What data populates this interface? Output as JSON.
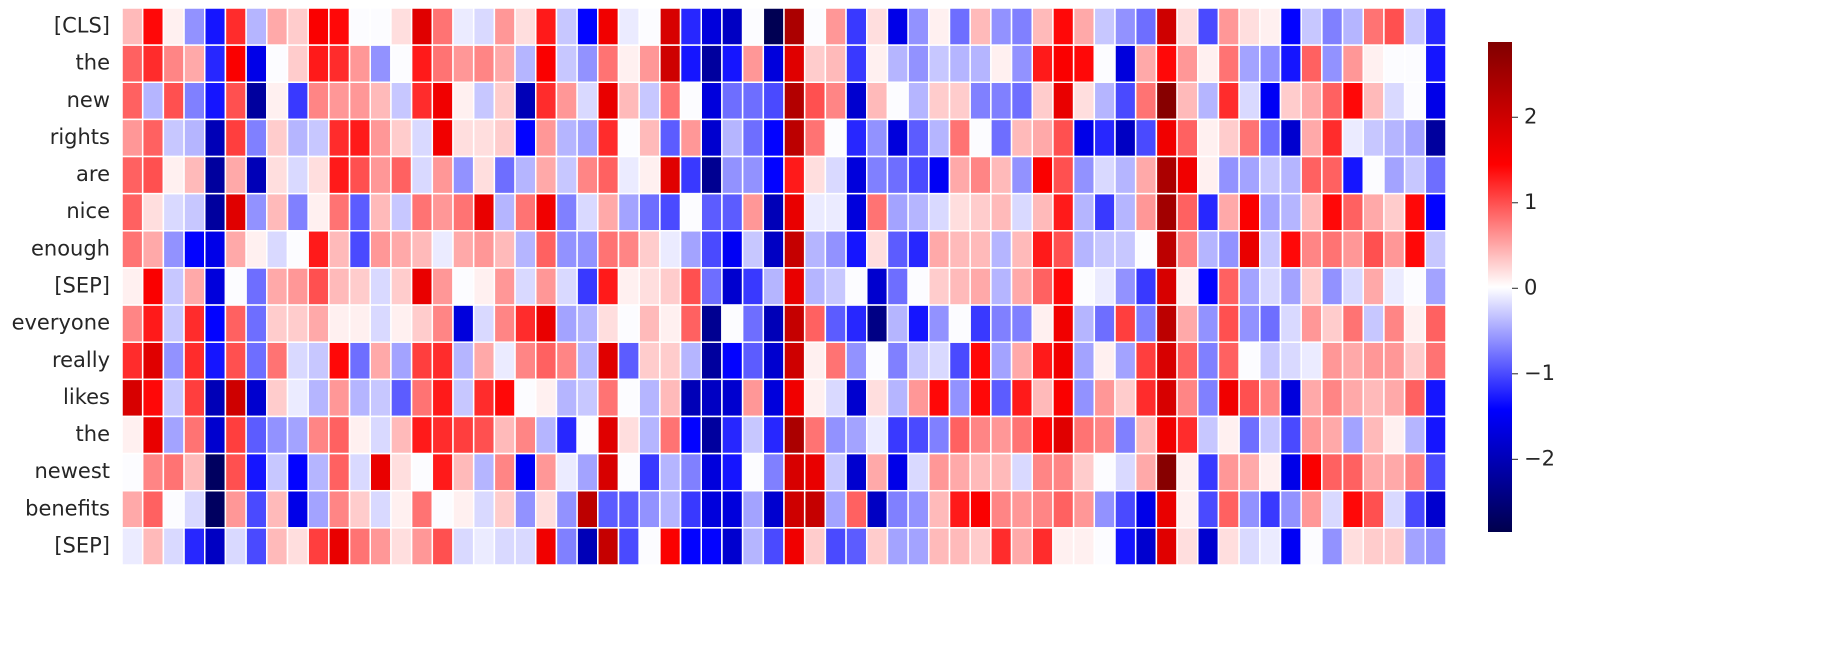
{
  "chart_data": {
    "type": "heatmap",
    "categories": [
      "[CLS]",
      "the",
      "new",
      "rights",
      "are",
      "nice",
      "enough",
      "[SEP]",
      "everyone",
      "really",
      "likes",
      "the",
      "newest",
      "benefits",
      "[SEP]"
    ],
    "colormap": "seismic",
    "vlim": [
      -2.85,
      2.88
    ],
    "colorbar_ticks": [
      {
        "value": -2,
        "label": "−2"
      },
      {
        "value": -1,
        "label": "−1"
      },
      0,
      1,
      2
    ],
    "z": [
      [
        0.4,
        1.4,
        0.1,
        -0.6,
        -1.3,
        1.2,
        -0.4,
        0.5,
        0.3,
        1.5,
        1.4,
        0.0,
        0.0,
        0.2,
        1.8,
        0.8,
        -0.1,
        -0.2,
        0.6,
        0.2,
        1.3,
        -0.3,
        -1.4,
        1.6,
        -0.1,
        0.0,
        1.9,
        -1.2,
        -1.7,
        -1.9,
        0.0,
        -2.8,
        2.4,
        0.0,
        0.6,
        -1.1,
        0.2,
        -1.6,
        -0.6,
        0.1,
        -0.8,
        0.4,
        -0.6,
        -0.7,
        0.4,
        1.4,
        0.5,
        -0.3,
        -0.6,
        -0.8,
        2.0,
        0.2,
        -1.0,
        0.6,
        0.2,
        0.1,
        -1.4,
        -0.3,
        -0.7,
        -0.4,
        0.8,
        1.0,
        -0.3,
        -1.2
      ],
      [
        0.9,
        1.2,
        0.7,
        0.5,
        -1.2,
        1.5,
        -1.6,
        0.0,
        0.3,
        1.3,
        1.2,
        0.6,
        -0.6,
        0.0,
        1.3,
        0.8,
        0.6,
        0.7,
        0.5,
        -0.4,
        1.5,
        -0.3,
        -0.6,
        0.8,
        0.1,
        0.6,
        2.0,
        -1.3,
        -2.2,
        -1.3,
        0.6,
        -1.7,
        1.8,
        0.3,
        0.4,
        -1.1,
        0.1,
        -0.4,
        -0.6,
        -0.3,
        -0.4,
        -0.4,
        0.1,
        -0.6,
        1.3,
        1.5,
        1.4,
        0.0,
        -1.7,
        0.5,
        1.4,
        0.6,
        0.1,
        0.8,
        -0.5,
        -0.6,
        -1.3,
        0.9,
        -0.6,
        0.6,
        0.1,
        0.0,
        0.0,
        -1.3
      ],
      [
        0.9,
        -0.4,
        1.0,
        -0.7,
        -1.3,
        1.0,
        -2.2,
        0.1,
        -1.1,
        0.7,
        0.6,
        0.6,
        0.4,
        -0.3,
        1.2,
        1.6,
        0.1,
        -0.3,
        0.3,
        -2.0,
        1.2,
        0.6,
        -0.2,
        1.7,
        0.4,
        -0.3,
        0.8,
        0.0,
        -1.7,
        -0.8,
        -0.8,
        -1.0,
        2.3,
        1.0,
        0.7,
        -1.8,
        0.4,
        0.0,
        -0.4,
        0.3,
        0.3,
        -0.7,
        -0.7,
        -0.8,
        0.3,
        1.7,
        0.2,
        -0.4,
        -1.0,
        0.8,
        2.8,
        0.4,
        -0.4,
        1.2,
        -0.2,
        -1.5,
        0.3,
        0.5,
        0.9,
        1.4,
        0.4,
        -0.2,
        0.0,
        -1.6
      ],
      [
        0.6,
        0.9,
        -0.3,
        -0.4,
        -2.0,
        1.1,
        -0.7,
        0.3,
        -0.4,
        -0.3,
        1.2,
        1.3,
        0.6,
        0.3,
        -0.2,
        1.6,
        0.2,
        0.2,
        0.3,
        -1.4,
        0.6,
        -0.4,
        -0.5,
        1.2,
        0.0,
        0.4,
        -0.9,
        0.6,
        -1.8,
        -0.4,
        -0.8,
        -1.4,
        2.2,
        0.8,
        0.0,
        -1.2,
        -0.6,
        -1.7,
        -0.9,
        -0.4,
        0.8,
        0.0,
        -0.8,
        0.4,
        0.5,
        1.0,
        -1.6,
        -1.2,
        -1.9,
        -1.0,
        1.6,
        0.9,
        0.1,
        0.3,
        0.8,
        -0.8,
        -1.8,
        0.5,
        1.2,
        -0.1,
        -0.3,
        -0.4,
        -0.5,
        -2.2
      ],
      [
        0.9,
        1.0,
        0.1,
        0.4,
        -2.2,
        0.5,
        -2.0,
        0.2,
        -0.2,
        0.2,
        1.3,
        1.0,
        0.6,
        0.9,
        -0.2,
        0.6,
        -0.6,
        0.2,
        -0.8,
        -0.4,
        0.5,
        -0.3,
        0.7,
        0.9,
        -0.1,
        0.1,
        1.8,
        -1.1,
        -2.3,
        -0.6,
        -0.6,
        -1.4,
        1.3,
        0.2,
        -0.2,
        -1.7,
        -0.7,
        -0.8,
        -1.0,
        -1.5,
        0.5,
        0.7,
        0.4,
        -0.6,
        1.5,
        1.0,
        -0.6,
        -0.2,
        -0.4,
        0.5,
        2.4,
        1.6,
        0.1,
        -0.6,
        -0.5,
        -0.3,
        -0.4,
        0.9,
        0.9,
        -1.3,
        0.0,
        -0.5,
        -0.3,
        -0.8
      ],
      [
        0.9,
        0.2,
        -0.2,
        -0.3,
        -2.2,
        1.8,
        -0.6,
        0.4,
        -0.7,
        0.1,
        0.8,
        -0.9,
        0.4,
        -0.3,
        0.8,
        0.6,
        0.8,
        1.7,
        -0.4,
        0.8,
        1.6,
        -0.7,
        -0.2,
        0.5,
        -0.5,
        -0.8,
        -1.0,
        0.0,
        -0.9,
        -0.9,
        0.6,
        -2.0,
        1.7,
        -0.1,
        -0.1,
        -1.7,
        0.8,
        -0.5,
        -0.4,
        -0.2,
        0.2,
        0.3,
        0.4,
        -0.2,
        0.4,
        1.3,
        -0.4,
        -1.1,
        -0.4,
        0.6,
        2.5,
        0.9,
        -1.2,
        0.5,
        1.5,
        -0.5,
        -0.4,
        0.4,
        1.4,
        0.9,
        0.5,
        0.3,
        1.4,
        -1.4
      ],
      [
        0.8,
        0.5,
        -0.6,
        -1.4,
        -1.6,
        0.5,
        0.1,
        -0.2,
        0.0,
        1.3,
        0.4,
        -1.0,
        0.6,
        0.5,
        0.4,
        -0.1,
        0.5,
        0.6,
        0.4,
        -0.4,
        0.9,
        -0.6,
        -0.6,
        0.8,
        0.7,
        0.3,
        -0.1,
        -0.5,
        -1.0,
        -1.5,
        -0.3,
        -1.9,
        2.1,
        -0.4,
        -0.6,
        -1.3,
        0.2,
        -0.9,
        -1.2,
        0.5,
        0.4,
        0.4,
        -0.4,
        0.4,
        1.3,
        1.0,
        -0.4,
        -0.3,
        -0.3,
        0.0,
        2.2,
        0.7,
        -0.4,
        -0.6,
        1.7,
        -0.3,
        1.4,
        0.7,
        0.8,
        0.6,
        1.0,
        0.6,
        1.4,
        -0.3
      ],
      [
        0.1,
        1.5,
        -0.3,
        0.5,
        -1.7,
        0.0,
        -0.8,
        0.5,
        0.6,
        1.0,
        0.4,
        0.3,
        -0.2,
        0.3,
        1.7,
        0.6,
        0.0,
        0.1,
        0.6,
        -0.2,
        0.6,
        -0.2,
        -1.1,
        1.3,
        0.1,
        0.2,
        0.3,
        1.0,
        -0.8,
        -1.8,
        -1.1,
        -0.4,
        1.7,
        -0.4,
        -0.3,
        0.0,
        -1.8,
        -0.8,
        0.0,
        0.3,
        0.4,
        0.5,
        -0.4,
        0.5,
        0.9,
        1.4,
        0.0,
        -0.1,
        -0.6,
        -1.1,
        1.9,
        0.1,
        -1.4,
        0.9,
        -0.5,
        -0.2,
        -0.5,
        0.3,
        -0.6,
        -0.2,
        0.5,
        -0.1,
        0.0,
        -0.5
      ],
      [
        0.7,
        1.3,
        -0.3,
        1.2,
        -1.4,
        0.9,
        -0.8,
        0.3,
        0.3,
        0.5,
        0.1,
        0.1,
        -0.2,
        0.1,
        0.3,
        0.7,
        -1.7,
        -0.2,
        0.7,
        1.2,
        1.7,
        -0.5,
        -0.4,
        0.2,
        0.0,
        0.4,
        0.1,
        0.9,
        -2.3,
        0.0,
        -0.8,
        -2.0,
        2.1,
        0.9,
        -0.9,
        -1.2,
        -2.4,
        -0.4,
        -1.3,
        -0.6,
        0.0,
        -1.1,
        -0.7,
        -0.7,
        0.1,
        1.6,
        -0.4,
        -0.8,
        1.1,
        -0.7,
        2.2,
        0.5,
        -0.6,
        1.0,
        -0.6,
        -0.8,
        -0.2,
        0.6,
        0.3,
        0.8,
        -0.3,
        0.7,
        0.1,
        0.9
      ],
      [
        1.2,
        1.8,
        -0.6,
        1.2,
        -1.3,
        1.0,
        -0.8,
        0.8,
        -0.2,
        -0.3,
        1.4,
        -0.8,
        0.5,
        -0.5,
        1.1,
        1.2,
        -0.4,
        0.5,
        -0.1,
        0.7,
        0.9,
        0.7,
        -0.4,
        1.8,
        -0.9,
        0.3,
        0.3,
        -0.4,
        -2.2,
        -1.4,
        -0.9,
        -1.8,
        2.0,
        0.1,
        0.8,
        -0.6,
        0.0,
        -0.7,
        -0.3,
        -0.2,
        -1.0,
        1.4,
        -0.5,
        0.5,
        1.3,
        1.6,
        -0.5,
        0.1,
        -0.5,
        1.1,
        1.9,
        0.9,
        -0.7,
        0.9,
        0.0,
        -0.3,
        -0.2,
        -0.1,
        0.6,
        0.5,
        0.6,
        0.6,
        0.3,
        0.8
      ],
      [
        1.9,
        1.4,
        -0.3,
        1.1,
        -2.0,
        2.0,
        -1.8,
        0.3,
        -0.1,
        -0.4,
        0.6,
        -0.4,
        -0.3,
        -0.9,
        0.8,
        1.3,
        -0.3,
        1.2,
        1.4,
        0.0,
        0.1,
        -0.4,
        -0.3,
        0.8,
        0.0,
        -0.4,
        0.4,
        -2.0,
        -1.9,
        -1.8,
        0.6,
        -1.7,
        1.6,
        0.1,
        -0.2,
        -1.8,
        0.2,
        -0.4,
        0.6,
        1.4,
        -0.6,
        1.4,
        -0.9,
        1.3,
        0.4,
        1.5,
        -0.6,
        0.6,
        0.3,
        1.2,
        1.9,
        0.7,
        -0.7,
        1.6,
        1.0,
        0.7,
        -1.7,
        0.5,
        0.7,
        0.5,
        0.4,
        0.5,
        0.9,
        -1.3
      ],
      [
        0.1,
        1.7,
        -0.5,
        0.8,
        -1.8,
        1.1,
        -0.9,
        -0.6,
        -0.5,
        0.7,
        0.9,
        0.1,
        -0.2,
        0.4,
        1.3,
        1.2,
        1.1,
        1.0,
        0.4,
        0.7,
        -0.4,
        -1.2,
        0.0,
        1.8,
        0.2,
        -0.4,
        0.8,
        -1.4,
        -2.2,
        -1.2,
        -0.3,
        -1.2,
        2.4,
        0.8,
        -0.6,
        -0.5,
        -0.1,
        -1.1,
        -1.0,
        -0.7,
        0.9,
        0.7,
        0.6,
        0.8,
        1.4,
        1.8,
        0.8,
        0.7,
        -0.7,
        0.4,
        1.6,
        1.2,
        -0.3,
        0.1,
        -0.8,
        -0.3,
        -1.0,
        0.6,
        0.5,
        -0.5,
        0.4,
        0.1,
        -0.4,
        -1.3
      ],
      [
        0.0,
        0.7,
        0.8,
        0.4,
        -2.7,
        1.0,
        -1.3,
        -0.3,
        -1.4,
        -0.4,
        0.9,
        -0.2,
        1.7,
        0.2,
        0.0,
        1.3,
        0.4,
        -0.4,
        0.7,
        -1.5,
        0.6,
        -0.1,
        -0.5,
        1.9,
        0.0,
        -1.1,
        -0.4,
        -0.7,
        -1.7,
        -1.3,
        0.0,
        -0.7,
        1.9,
        1.7,
        -0.3,
        -1.8,
        0.5,
        -1.6,
        -0.2,
        0.6,
        0.5,
        0.4,
        0.4,
        -0.2,
        0.7,
        0.7,
        0.3,
        0.0,
        -0.2,
        0.5,
        2.8,
        0.1,
        -1.1,
        0.6,
        0.5,
        0.1,
        -1.6,
        1.5,
        0.9,
        0.9,
        0.5,
        0.5,
        0.7,
        -1.0
      ],
      [
        0.5,
        0.9,
        0.0,
        -0.2,
        -2.7,
        0.6,
        -1.0,
        0.4,
        -1.6,
        -0.5,
        0.7,
        0.3,
        -0.2,
        0.1,
        0.8,
        0.0,
        0.1,
        -0.2,
        0.3,
        -0.6,
        0.2,
        -0.6,
        2.2,
        -0.9,
        -0.9,
        -0.6,
        -0.4,
        -1.1,
        -1.7,
        -1.7,
        -0.5,
        -1.8,
        2.0,
        2.1,
        -0.5,
        0.9,
        -1.9,
        -0.7,
        -0.6,
        0.4,
        1.3,
        1.5,
        0.7,
        0.6,
        0.7,
        0.9,
        0.6,
        -0.6,
        -1.0,
        -1.6,
        1.7,
        0.1,
        -1.0,
        0.9,
        -0.6,
        -1.1,
        -0.6,
        0.6,
        -0.2,
        1.4,
        1.0,
        -0.2,
        -1.0,
        -1.8
      ],
      [
        -0.1,
        0.4,
        -0.2,
        -1.2,
        -1.9,
        -0.2,
        -1.0,
        0.4,
        0.2,
        1.1,
        1.7,
        0.8,
        0.6,
        0.2,
        0.6,
        1.0,
        -0.2,
        -0.1,
        -0.2,
        -0.2,
        1.6,
        -0.7,
        -2.0,
        2.1,
        -1.0,
        0.0,
        1.5,
        -1.4,
        -1.4,
        -1.8,
        -0.4,
        -1.0,
        1.6,
        0.3,
        -1.0,
        -0.9,
        0.3,
        -0.5,
        -0.5,
        0.4,
        0.4,
        0.3,
        1.2,
        0.5,
        1.2,
        0.1,
        0.1,
        0.0,
        -1.3,
        -1.8,
        1.8,
        0.2,
        -1.8,
        0.2,
        -0.2,
        -0.1,
        -1.5,
        0.0,
        -0.6,
        0.2,
        0.3,
        0.3,
        -0.5,
        -0.6
      ]
    ]
  }
}
